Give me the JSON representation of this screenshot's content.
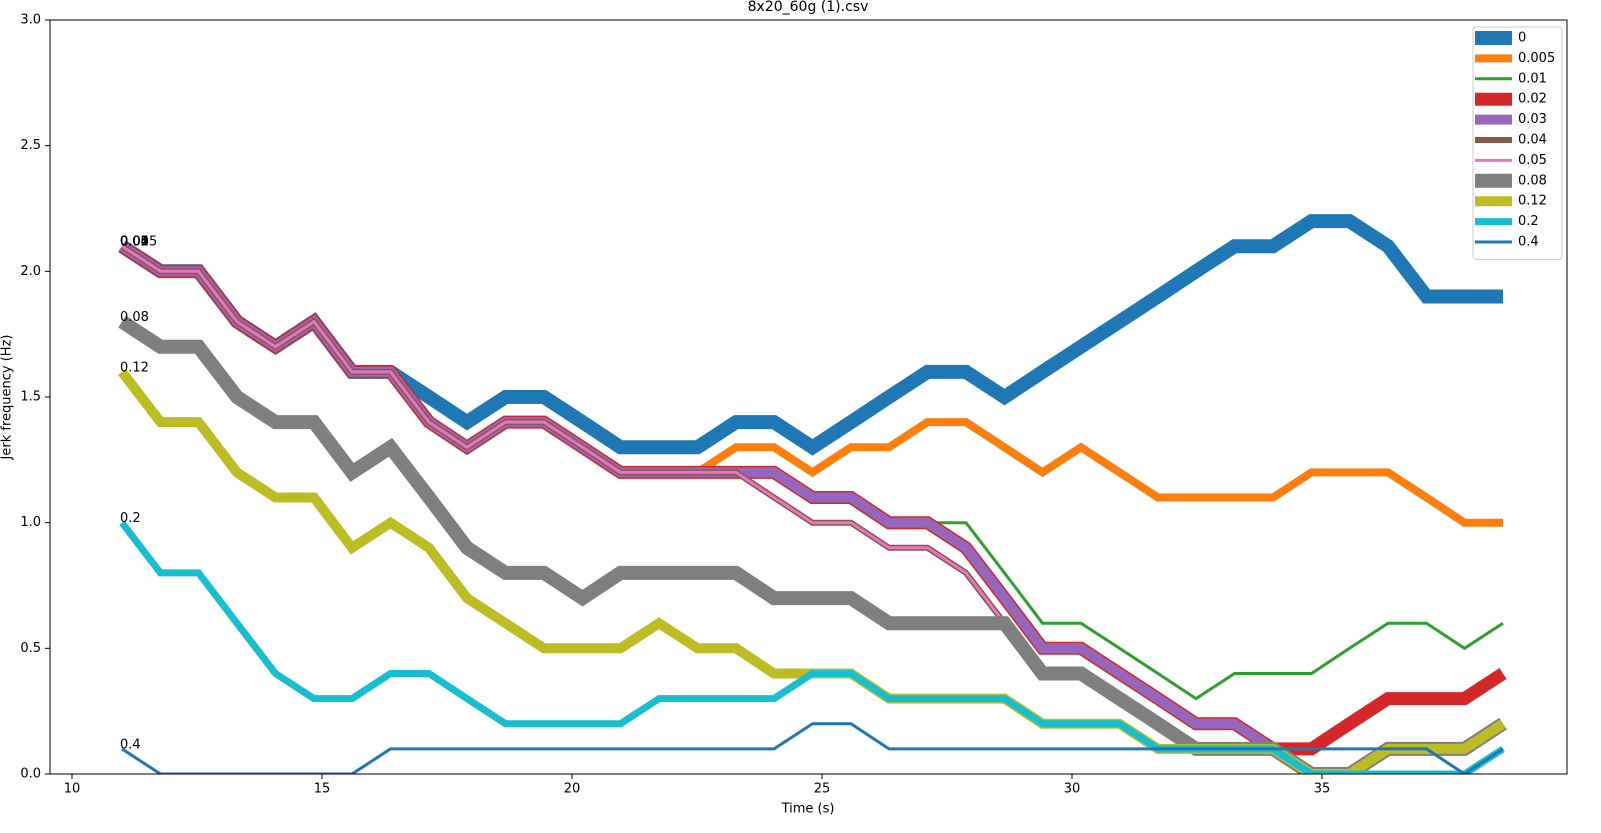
{
  "chart_data": {
    "type": "line",
    "title": "8x20_60g (1).csv",
    "xlabel": "Time (s)",
    "ylabel": "Jerk frequency (Hz)",
    "x": [
      11,
      11.77,
      12.53,
      13.3,
      14.07,
      14.84,
      15.6,
      16.37,
      17.14,
      17.9,
      18.67,
      19.44,
      20.21,
      20.97,
      21.74,
      22.51,
      23.28,
      24.04,
      24.81,
      25.58,
      26.34,
      27.11,
      27.88,
      28.65,
      29.41,
      30.18,
      30.95,
      31.72,
      32.48,
      33.25,
      34.02,
      34.79,
      35.55,
      36.32,
      37.09,
      37.85,
      38.62
    ],
    "series": [
      {
        "name": "0",
        "color": "#1f77b4",
        "width": 14,
        "values": [
          2.1,
          2.0,
          2.0,
          1.8,
          1.7,
          1.8,
          1.6,
          1.6,
          1.5,
          1.4,
          1.5,
          1.5,
          1.4,
          1.3,
          1.3,
          1.3,
          1.4,
          1.4,
          1.3,
          1.4,
          1.5,
          1.6,
          1.6,
          1.5,
          1.6,
          1.7,
          1.8,
          1.9,
          2.0,
          2.1,
          2.1,
          2.2,
          2.2,
          2.1,
          1.9,
          1.9,
          1.9
        ]
      },
      {
        "name": "0.005",
        "color": "#ff7f0e",
        "width": 8,
        "values": [
          2.1,
          2.0,
          2.0,
          1.8,
          1.7,
          1.8,
          1.6,
          1.6,
          1.4,
          1.3,
          1.4,
          1.4,
          1.3,
          1.2,
          1.2,
          1.2,
          1.3,
          1.3,
          1.2,
          1.3,
          1.3,
          1.4,
          1.4,
          1.3,
          1.2,
          1.3,
          1.2,
          1.1,
          1.1,
          1.1,
          1.1,
          1.2,
          1.2,
          1.2,
          1.1,
          1.0,
          1.0
        ]
      },
      {
        "name": "0.01",
        "color": "#2ca02c",
        "width": 3,
        "values": [
          2.1,
          2.0,
          2.0,
          1.8,
          1.7,
          1.8,
          1.6,
          1.6,
          1.4,
          1.3,
          1.4,
          1.4,
          1.3,
          1.2,
          1.2,
          1.2,
          1.2,
          1.2,
          1.1,
          1.1,
          1.0,
          1.0,
          1.0,
          0.8,
          0.6,
          0.6,
          0.5,
          0.4,
          0.3,
          0.4,
          0.4,
          0.4,
          0.5,
          0.6,
          0.6,
          0.5,
          0.6
        ]
      },
      {
        "name": "0.02",
        "color": "#d62728",
        "width": 13,
        "values": [
          2.1,
          2.0,
          2.0,
          1.8,
          1.7,
          1.8,
          1.6,
          1.6,
          1.4,
          1.3,
          1.4,
          1.4,
          1.3,
          1.2,
          1.2,
          1.2,
          1.2,
          1.2,
          1.1,
          1.1,
          1.0,
          1.0,
          0.9,
          0.7,
          0.5,
          0.5,
          0.4,
          0.3,
          0.2,
          0.2,
          0.1,
          0.1,
          0.2,
          0.3,
          0.3,
          0.3,
          0.4
        ]
      },
      {
        "name": "0.03",
        "color": "#9467bd",
        "width": 10,
        "values": [
          2.1,
          2.0,
          2.0,
          1.8,
          1.7,
          1.8,
          1.6,
          1.6,
          1.4,
          1.3,
          1.4,
          1.4,
          1.3,
          1.2,
          1.2,
          1.2,
          1.2,
          1.2,
          1.1,
          1.1,
          1.0,
          1.0,
          0.9,
          0.7,
          0.5,
          0.5,
          0.4,
          0.3,
          0.2,
          0.2,
          0.1,
          0.0,
          0.0,
          0.1,
          0.1,
          0.1,
          0.2
        ]
      },
      {
        "name": "0.04",
        "color": "#8c564b",
        "width": 6,
        "values": [
          2.1,
          2.0,
          2.0,
          1.8,
          1.7,
          1.8,
          1.6,
          1.6,
          1.4,
          1.3,
          1.4,
          1.4,
          1.3,
          1.2,
          1.2,
          1.2,
          1.2,
          1.1,
          1.0,
          1.0,
          0.9,
          0.9,
          0.8,
          0.6,
          0.4,
          0.4,
          0.3,
          0.2,
          0.1,
          0.1,
          0.1,
          0.0,
          0.0,
          0.1,
          0.1,
          0.1,
          0.2
        ]
      },
      {
        "name": "0.05",
        "color": "#e377c2",
        "width": 3,
        "values": [
          2.1,
          2.0,
          2.0,
          1.8,
          1.7,
          1.8,
          1.6,
          1.6,
          1.4,
          1.3,
          1.4,
          1.4,
          1.3,
          1.2,
          1.2,
          1.2,
          1.2,
          1.1,
          1.0,
          1.0,
          0.9,
          0.9,
          0.8,
          0.6,
          0.4,
          0.4,
          0.3,
          0.2,
          0.1,
          0.1,
          0.1,
          0.0,
          0.0,
          0.1,
          0.1,
          0.1,
          0.2
        ]
      },
      {
        "name": "0.08",
        "color": "#7f7f7f",
        "width": 14,
        "values": [
          1.8,
          1.7,
          1.7,
          1.5,
          1.4,
          1.4,
          1.2,
          1.3,
          1.1,
          0.9,
          0.8,
          0.8,
          0.7,
          0.8,
          0.8,
          0.8,
          0.8,
          0.7,
          0.7,
          0.7,
          0.6,
          0.6,
          0.6,
          0.6,
          0.4,
          0.4,
          0.3,
          0.2,
          0.1,
          0.1,
          0.1,
          0.0,
          0.0,
          0.1,
          0.1,
          0.1,
          0.2
        ]
      },
      {
        "name": "0.12",
        "color": "#bcbd22",
        "width": 10,
        "values": [
          1.6,
          1.4,
          1.4,
          1.2,
          1.1,
          1.1,
          0.9,
          1.0,
          0.9,
          0.7,
          0.6,
          0.5,
          0.5,
          0.5,
          0.6,
          0.5,
          0.5,
          0.4,
          0.4,
          0.4,
          0.3,
          0.3,
          0.3,
          0.3,
          0.2,
          0.2,
          0.2,
          0.1,
          0.1,
          0.1,
          0.1,
          0.0,
          0.0,
          0.1,
          0.1,
          0.1,
          0.2
        ]
      },
      {
        "name": "0.2",
        "color": "#17becf",
        "width": 7,
        "values": [
          1.0,
          0.8,
          0.8,
          0.6,
          0.4,
          0.3,
          0.3,
          0.4,
          0.4,
          0.3,
          0.2,
          0.2,
          0.2,
          0.2,
          0.3,
          0.3,
          0.3,
          0.3,
          0.4,
          0.4,
          0.3,
          0.3,
          0.3,
          0.3,
          0.2,
          0.2,
          0.2,
          0.1,
          0.1,
          0.1,
          0.1,
          0.0,
          0.0,
          0.0,
          0.0,
          0.0,
          0.1
        ]
      },
      {
        "name": "0.4",
        "color": "#1f77b4",
        "width": 3,
        "values": [
          0.1,
          0.0,
          0.0,
          0.0,
          0.0,
          0.0,
          0.0,
          0.1,
          0.1,
          0.1,
          0.1,
          0.1,
          0.1,
          0.1,
          0.1,
          0.1,
          0.1,
          0.1,
          0.2,
          0.2,
          0.1,
          0.1,
          0.1,
          0.1,
          0.1,
          0.1,
          0.1,
          0.1,
          0.1,
          0.1,
          0.1,
          0.1,
          0.1,
          0.1,
          0.1,
          0.0,
          0.1
        ]
      }
    ],
    "xlim": [
      9.56,
      39.9
    ],
    "ylim": [
      0,
      3
    ],
    "xticks": [
      10,
      15,
      20,
      25,
      30,
      35
    ],
    "yticks": [
      {
        "value": 0,
        "label": "0.0"
      },
      {
        "value": 0.5,
        "label": "0.5"
      },
      {
        "value": 1,
        "label": "1.0"
      },
      {
        "value": 1.5,
        "label": "1.5"
      },
      {
        "value": 2,
        "label": "2.0"
      },
      {
        "value": 2.5,
        "label": "2.5"
      },
      {
        "value": 3,
        "label": "3.0"
      }
    ],
    "legend": "upper right"
  }
}
